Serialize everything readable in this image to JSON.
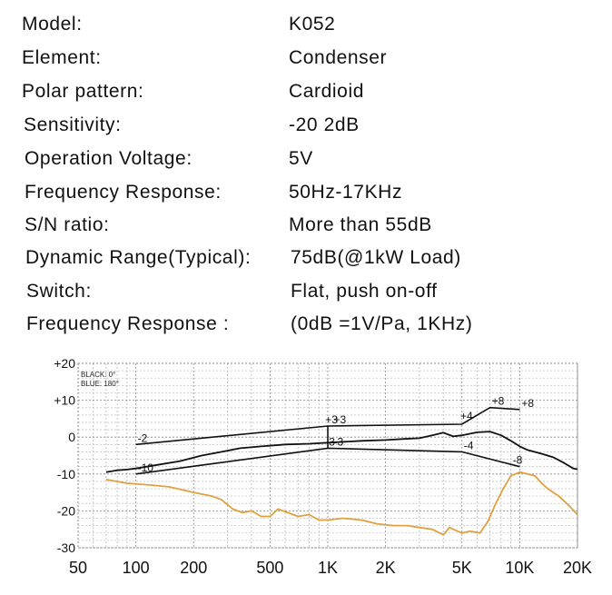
{
  "specs": [
    {
      "label": "Model:",
      "value": "K052"
    },
    {
      "label": "Element:",
      "value": "Condenser"
    },
    {
      "label": "Polar pattern:",
      "value": "Cardioid"
    },
    {
      "label": "Sensitivity:",
      "value": "-20 2dB"
    },
    {
      "label": "Operation Voltage:",
      "value": "5V"
    },
    {
      "label": "Frequency Response:",
      "value": "50Hz-17KHz"
    },
    {
      "label": "S/N ratio:",
      "value": "More than 55dB"
    },
    {
      "label": "Dynamic Range(Typical):",
      "value": "75dB(@1kW Load)"
    },
    {
      "label": "Switch:",
      "value": "Flat, push on-off"
    },
    {
      "label": "Frequency  Response :",
      "value": "(0dB =1V/Pa, 1KHz)"
    }
  ],
  "chart_data": {
    "type": "line",
    "xscale": "log",
    "xlim": [
      50,
      20000
    ],
    "ylim": [
      -30,
      20
    ],
    "grid": true,
    "x_ticks": [
      {
        "value": 50,
        "label": "50"
      },
      {
        "value": 100,
        "label": "100"
      },
      {
        "value": 200,
        "label": "200"
      },
      {
        "value": 500,
        "label": "500"
      },
      {
        "value": 1000,
        "label": "1K"
      },
      {
        "value": 2000,
        "label": "2K"
      },
      {
        "value": 5000,
        "label": "5K"
      },
      {
        "value": 10000,
        "label": "10K"
      },
      {
        "value": 20000,
        "label": "20K"
      }
    ],
    "y_ticks": [
      {
        "value": 20,
        "label": "+20"
      },
      {
        "value": 10,
        "label": "+10"
      },
      {
        "value": 0,
        "label": "0"
      },
      {
        "value": -10,
        "label": "-10"
      },
      {
        "value": -20,
        "label": "-20"
      },
      {
        "value": -30,
        "label": "-30"
      }
    ],
    "legend": [
      {
        "text": "BLACK: 0°"
      },
      {
        "text": "BLUE: 180°"
      }
    ],
    "series": [
      {
        "color": "#111111",
        "points": [
          [
            70,
            -9.5
          ],
          [
            80,
            -9
          ],
          [
            90,
            -8.8
          ],
          [
            100,
            -8.5
          ],
          [
            130,
            -7.5
          ],
          [
            170,
            -6.5
          ],
          [
            220,
            -5
          ],
          [
            280,
            -4
          ],
          [
            350,
            -3
          ],
          [
            450,
            -2.5
          ],
          [
            600,
            -2
          ],
          [
            800,
            -1.8
          ],
          [
            1000,
            -1.5
          ],
          [
            1500,
            -1
          ],
          [
            2000,
            -0.8
          ],
          [
            2500,
            -0.5
          ],
          [
            3000,
            -0.3
          ],
          [
            3500,
            0.5
          ],
          [
            4000,
            1.2
          ],
          [
            4500,
            0.2
          ],
          [
            5000,
            0.5
          ],
          [
            6000,
            1.3
          ],
          [
            7000,
            1.5
          ],
          [
            8000,
            0.5
          ],
          [
            9000,
            -1
          ],
          [
            10000,
            -2.5
          ],
          [
            11000,
            -3.5
          ],
          [
            13000,
            -4.5
          ],
          [
            15000,
            -5.5
          ],
          [
            17000,
            -7
          ],
          [
            19000,
            -8.5
          ],
          [
            20000,
            -8.7
          ]
        ]
      },
      {
        "color": "#e0a040",
        "points": [
          [
            70,
            -11.5
          ],
          [
            90,
            -12.5
          ],
          [
            120,
            -13
          ],
          [
            150,
            -13.5
          ],
          [
            200,
            -15
          ],
          [
            250,
            -16
          ],
          [
            280,
            -17
          ],
          [
            320,
            -19.5
          ],
          [
            360,
            -20.5
          ],
          [
            400,
            -20
          ],
          [
            450,
            -21.5
          ],
          [
            500,
            -21.5
          ],
          [
            550,
            -19.5
          ],
          [
            620,
            -20.5
          ],
          [
            700,
            -21.5
          ],
          [
            800,
            -21
          ],
          [
            900,
            -22.5
          ],
          [
            1000,
            -22.5
          ],
          [
            1200,
            -22
          ],
          [
            1500,
            -22.5
          ],
          [
            1800,
            -23.5
          ],
          [
            2200,
            -24
          ],
          [
            2600,
            -24
          ],
          [
            3000,
            -24.5
          ],
          [
            3500,
            -25
          ],
          [
            4000,
            -26.5
          ],
          [
            4300,
            -24.5
          ],
          [
            5000,
            -26
          ],
          [
            5500,
            -25.5
          ],
          [
            6200,
            -26
          ],
          [
            6800,
            -23
          ],
          [
            7500,
            -18
          ],
          [
            8200,
            -14
          ],
          [
            9000,
            -10.5
          ],
          [
            10000,
            -9.5
          ],
          [
            11000,
            -10
          ],
          [
            12000,
            -10.5
          ],
          [
            13000,
            -12.5
          ],
          [
            14000,
            -14
          ],
          [
            16000,
            -16
          ],
          [
            18000,
            -18.5
          ],
          [
            20000,
            -21
          ]
        ]
      }
    ],
    "tolerance_lines": [
      {
        "points": [
          [
            100,
            -2
          ],
          [
            1000,
            3
          ],
          [
            5000,
            3.5
          ],
          [
            7000,
            8
          ],
          [
            10000,
            7.5
          ]
        ]
      },
      {
        "points": [
          [
            100,
            -10
          ],
          [
            1000,
            -3
          ],
          [
            5000,
            -4
          ],
          [
            10000,
            -8
          ]
        ]
      },
      {
        "points": [
          [
            1000,
            3
          ],
          [
            1000,
            -3
          ]
        ]
      }
    ],
    "annotations": [
      {
        "text": "-2",
        "x": 100,
        "y": -2
      },
      {
        "text": "-10",
        "x": 100,
        "y": -10
      },
      {
        "text": "+3",
        "x": 950,
        "y": 3
      },
      {
        "text": "+3",
        "x": 1050,
        "y": 3
      },
      {
        "text": "-3",
        "x": 950,
        "y": -3
      },
      {
        "text": "-3",
        "x": 1050,
        "y": -3
      },
      {
        "text": "+4",
        "x": 4800,
        "y": 4
      },
      {
        "text": "+8",
        "x": 7000,
        "y": 8
      },
      {
        "text": "+8",
        "x": 10000,
        "y": 7.5
      },
      {
        "text": "-4",
        "x": 5000,
        "y": -4
      },
      {
        "text": "-8",
        "x": 9000,
        "y": -8
      }
    ]
  }
}
